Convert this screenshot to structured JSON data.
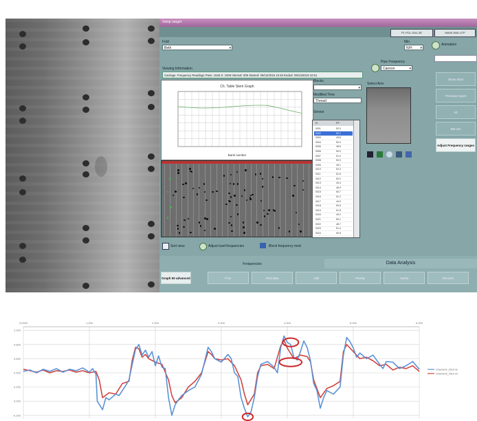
{
  "app": {
    "title": "Vamp ranger",
    "top_tabs": [
      "P1 POL 1041-3E",
      "WAVE AND UTF"
    ],
    "left_field_label": "Fold",
    "left_field_value": "Beth",
    "mid_field_label": "Min",
    "mid_field_value": "N/H",
    "status_icon": "refresh-icon",
    "status_text": "Animation",
    "section_label": "Viewing Information",
    "info_line": "Carriage: Frequency Readings   Pass: 1046   S: 1006   Interval: 009   Started: 09/13/2019 10:49   Ended: 09/13/2019 10:51",
    "side_combo_label": "Pipe Frequency",
    "side_combo_value": "Cannon",
    "list_label_1": "Blocks",
    "list_label_2": "Modified Time",
    "list_value_2": "Thread",
    "list_label_3": "Sensor",
    "thumbnail_label": "Select Arm",
    "right_buttons": [
      "Show drive",
      "Previous report",
      "All",
      "Bar set",
      "Adjust Frequency ranges"
    ],
    "legend_items": [
      {
        "icon": "tile-icon",
        "label": "Sort view"
      },
      {
        "icon": "refresh-icon",
        "label": "Adjust load frequencies"
      },
      {
        "icon": "bar-icon",
        "label": "Block frequency mod"
      }
    ],
    "bottom_tabs": [
      "Frequencies",
      "Data Analysis"
    ],
    "bottom_buttons": [
      "Graph 50 advanced",
      "Prior",
      "Find data",
      "Add",
      "Priority",
      "Cache",
      "Recover"
    ]
  },
  "table": {
    "headers": [
      "N",
      "FF"
    ],
    "rows": [
      [
        "0001",
        "52.0"
      ],
      [
        "0002",
        "52.1"
      ],
      [
        "0003",
        "49.8"
      ],
      [
        "0004",
        "50.4"
      ],
      [
        "0005",
        "48.6"
      ],
      [
        "0006",
        "50.9"
      ],
      [
        "0007",
        "51.0"
      ],
      [
        "0008",
        "50.3"
      ],
      [
        "0009",
        "49.1"
      ],
      [
        "0010",
        "52.3"
      ],
      [
        "0011",
        "51.6"
      ],
      [
        "0012",
        "50.0"
      ],
      [
        "0013",
        "49.4"
      ],
      [
        "0014",
        "48.9"
      ],
      [
        "0015",
        "50.7"
      ],
      [
        "0016",
        "51.2"
      ],
      [
        "0017",
        "49.9"
      ],
      [
        "0018",
        "50.5"
      ],
      [
        "0019",
        "51.8"
      ],
      [
        "0020",
        "49.2"
      ],
      [
        "0021",
        "50.1"
      ],
      [
        "0022",
        "48.7"
      ],
      [
        "0023",
        "51.4"
      ],
      [
        "0024",
        "50.8"
      ]
    ],
    "selected_row": 1
  },
  "mini_chart": {
    "title": "Ch. Table Stem Graph",
    "xlabel": "Bank number"
  },
  "chart_data": {
    "type": "line",
    "x_tick_labels": [
      "0.0000",
      "1.000",
      "2.000",
      "3.000",
      "4.000",
      "5.000",
      "6.000"
    ],
    "y_tick_labels": [
      "1.000",
      "0.800",
      "0.600",
      "0.400",
      "0.200",
      "0.000",
      "-0.200"
    ],
    "ylim": [
      -0.25,
      1.05
    ],
    "xlim": [
      0,
      6
    ],
    "grid": true,
    "legend_position": "right",
    "colors": [
      "#5b92d6",
      "#d1433f"
    ],
    "series": [
      {
        "name": "Channel A_2019 ml",
        "values": [
          [
            0.0,
            0.42
          ],
          [
            0.1,
            0.44
          ],
          [
            0.2,
            0.4
          ],
          [
            0.3,
            0.45
          ],
          [
            0.4,
            0.42
          ],
          [
            0.5,
            0.46
          ],
          [
            0.6,
            0.41
          ],
          [
            0.7,
            0.45
          ],
          [
            0.8,
            0.43
          ],
          [
            0.9,
            0.47
          ],
          [
            1.0,
            0.41
          ],
          [
            1.05,
            0.46
          ],
          [
            1.1,
            0.38
          ],
          [
            1.12,
            0.0
          ],
          [
            1.2,
            -0.12
          ],
          [
            1.25,
            0.05
          ],
          [
            1.3,
            0.02
          ],
          [
            1.4,
            0.1
          ],
          [
            1.45,
            0.08
          ],
          [
            1.55,
            0.22
          ],
          [
            1.6,
            0.3
          ],
          [
            1.65,
            0.52
          ],
          [
            1.7,
            0.73
          ],
          [
            1.75,
            0.8
          ],
          [
            1.8,
            0.65
          ],
          [
            1.85,
            0.72
          ],
          [
            1.9,
            0.62
          ],
          [
            1.95,
            0.7
          ],
          [
            2.0,
            0.5
          ],
          [
            2.05,
            0.64
          ],
          [
            2.1,
            0.48
          ],
          [
            2.15,
            0.46
          ],
          [
            2.2,
            0.05
          ],
          [
            2.25,
            -0.2
          ],
          [
            2.3,
            -0.05
          ],
          [
            2.35,
            0.02
          ],
          [
            2.4,
            0.08
          ],
          [
            2.5,
            0.15
          ],
          [
            2.6,
            0.2
          ],
          [
            2.7,
            0.38
          ],
          [
            2.8,
            0.76
          ],
          [
            2.85,
            0.7
          ],
          [
            2.9,
            0.6
          ],
          [
            3.0,
            0.55
          ],
          [
            3.1,
            0.66
          ],
          [
            3.15,
            0.6
          ],
          [
            3.2,
            0.4
          ],
          [
            3.25,
            0.35
          ],
          [
            3.3,
            0.05
          ],
          [
            3.35,
            -0.1
          ],
          [
            3.4,
            -0.22
          ],
          [
            3.45,
            -0.15
          ],
          [
            3.5,
            0.05
          ],
          [
            3.55,
            0.35
          ],
          [
            3.6,
            0.52
          ],
          [
            3.7,
            0.56
          ],
          [
            3.8,
            0.48
          ],
          [
            3.85,
            0.4
          ],
          [
            3.9,
            0.75
          ],
          [
            3.95,
            0.92
          ],
          [
            4.0,
            0.83
          ],
          [
            4.05,
            0.8
          ],
          [
            4.1,
            0.62
          ],
          [
            4.15,
            0.58
          ],
          [
            4.2,
            0.7
          ],
          [
            4.25,
            0.85
          ],
          [
            4.3,
            0.76
          ],
          [
            4.35,
            0.58
          ],
          [
            4.4,
            0.25
          ],
          [
            4.45,
            0.15
          ],
          [
            4.5,
            -0.1
          ],
          [
            4.55,
            0.05
          ],
          [
            4.6,
            0.15
          ],
          [
            4.7,
            0.1
          ],
          [
            4.8,
            0.2
          ],
          [
            4.85,
            0.65
          ],
          [
            4.9,
            0.9
          ],
          [
            4.95,
            0.84
          ],
          [
            5.0,
            0.75
          ],
          [
            5.05,
            0.62
          ],
          [
            5.1,
            0.68
          ],
          [
            5.2,
            0.6
          ],
          [
            5.3,
            0.65
          ],
          [
            5.4,
            0.52
          ],
          [
            5.45,
            0.46
          ],
          [
            5.5,
            0.56
          ],
          [
            5.6,
            0.55
          ],
          [
            5.7,
            0.46
          ],
          [
            5.8,
            0.5
          ],
          [
            5.9,
            0.56
          ],
          [
            6.0,
            0.45
          ]
        ]
      },
      {
        "name": "Channel B_2019 ml",
        "values": [
          [
            0.0,
            0.45
          ],
          [
            0.1,
            0.43
          ],
          [
            0.2,
            0.41
          ],
          [
            0.3,
            0.44
          ],
          [
            0.4,
            0.4
          ],
          [
            0.5,
            0.43
          ],
          [
            0.6,
            0.42
          ],
          [
            0.7,
            0.44
          ],
          [
            0.8,
            0.41
          ],
          [
            0.9,
            0.43
          ],
          [
            1.0,
            0.4
          ],
          [
            1.1,
            0.42
          ],
          [
            1.15,
            0.3
          ],
          [
            1.2,
            0.05
          ],
          [
            1.3,
            0.12
          ],
          [
            1.4,
            0.1
          ],
          [
            1.5,
            0.25
          ],
          [
            1.6,
            0.28
          ],
          [
            1.65,
            0.58
          ],
          [
            1.7,
            0.76
          ],
          [
            1.75,
            0.74
          ],
          [
            1.8,
            0.62
          ],
          [
            1.85,
            0.66
          ],
          [
            1.9,
            0.6
          ],
          [
            2.0,
            0.55
          ],
          [
            2.1,
            0.52
          ],
          [
            2.2,
            0.3
          ],
          [
            2.25,
            0.08
          ],
          [
            2.3,
            -0.02
          ],
          [
            2.4,
            0.05
          ],
          [
            2.5,
            0.2
          ],
          [
            2.6,
            0.28
          ],
          [
            2.7,
            0.4
          ],
          [
            2.8,
            0.7
          ],
          [
            2.85,
            0.66
          ],
          [
            2.9,
            0.6
          ],
          [
            3.0,
            0.58
          ],
          [
            3.1,
            0.6
          ],
          [
            3.2,
            0.5
          ],
          [
            3.3,
            0.3
          ],
          [
            3.35,
            0.1
          ],
          [
            3.4,
            -0.05
          ],
          [
            3.5,
            0.1
          ],
          [
            3.55,
            0.4
          ],
          [
            3.6,
            0.5
          ],
          [
            3.7,
            0.52
          ],
          [
            3.8,
            0.46
          ],
          [
            3.9,
            0.78
          ],
          [
            3.95,
            0.86
          ],
          [
            4.0,
            0.75
          ],
          [
            4.1,
            0.6
          ],
          [
            4.2,
            0.65
          ],
          [
            4.3,
            0.63
          ],
          [
            4.35,
            0.56
          ],
          [
            4.4,
            0.3
          ],
          [
            4.5,
            0.05
          ],
          [
            4.6,
            0.18
          ],
          [
            4.7,
            0.22
          ],
          [
            4.8,
            0.28
          ],
          [
            4.85,
            0.7
          ],
          [
            4.9,
            0.8
          ],
          [
            5.0,
            0.7
          ],
          [
            5.1,
            0.6
          ],
          [
            5.2,
            0.62
          ],
          [
            5.3,
            0.57
          ],
          [
            5.4,
            0.5
          ],
          [
            5.5,
            0.52
          ],
          [
            5.6,
            0.44
          ],
          [
            5.7,
            0.48
          ],
          [
            5.8,
            0.46
          ],
          [
            5.9,
            0.5
          ],
          [
            6.0,
            0.42
          ]
        ]
      }
    ],
    "annotations": [
      {
        "shape": "ellipse",
        "x": 3.4,
        "y": -0.22,
        "rx": 0.08,
        "ry": 0.05
      },
      {
        "shape": "ellipse",
        "x": 4.05,
        "y": 0.83,
        "rx": 0.12,
        "ry": 0.06
      },
      {
        "shape": "ellipse",
        "x": 4.05,
        "y": 0.55,
        "rx": 0.17,
        "ry": 0.06
      }
    ]
  }
}
